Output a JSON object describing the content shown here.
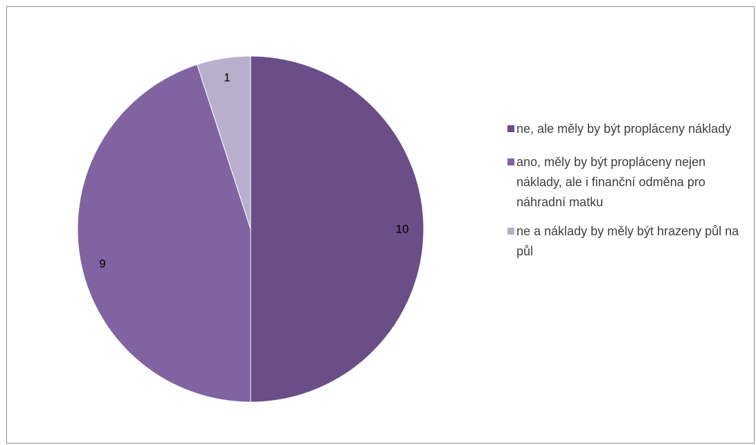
{
  "chart_data": {
    "type": "pie",
    "slices": [
      {
        "label": "ne, ale měly by být propláceny náklady",
        "value": 10,
        "color": "#694e87"
      },
      {
        "label": "ano, měly by být propláceny nejen náklady, ale i finanční odměna pro náhradní matku",
        "value": 9,
        "color": "#7f64a1"
      },
      {
        "label": "ne a náklady by měly být hrazeny půl na půl",
        "value": 1,
        "color": "#b9afcc"
      }
    ],
    "data_labels": [
      "10",
      "9",
      "1"
    ],
    "start_angle": "12 o'clock",
    "direction": "clockwise",
    "legend_position": "right",
    "title": ""
  }
}
